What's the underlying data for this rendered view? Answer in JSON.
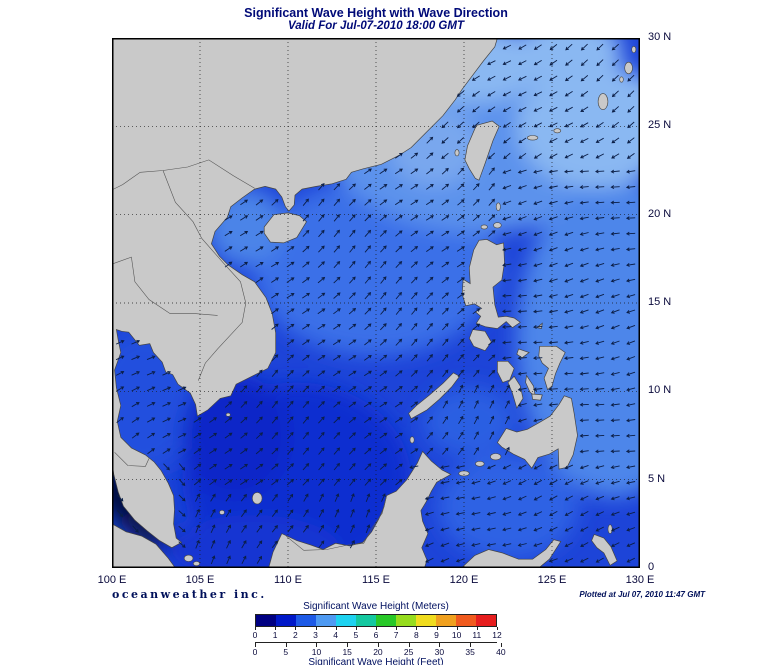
{
  "header": {
    "title": "Significant Wave Height with Wave Direction",
    "subtitle": "Valid For Jul-07-2010 18:00 GMT"
  },
  "map": {
    "lon_ticks": [
      "100 E",
      "105 E",
      "110 E",
      "115 E",
      "120 E",
      "125 E",
      "130 E"
    ],
    "lat_ticks": [
      "30 N",
      "25 N",
      "20 N",
      "15 N",
      "10 N",
      "5 N",
      "0"
    ],
    "grid_interval_deg": 5,
    "palette": {
      "sea_base": "#1d44d8",
      "deep": "#0d2fd0",
      "deeper": "#0a28c8",
      "mid": "#3a6fe8",
      "light": "#5c92ec",
      "pacific": "#4e86ea",
      "palest": "#8ab8f2",
      "strait_light": "#79a7ee",
      "tonkin": "#4c84e8",
      "gulf": "#2050de",
      "java": "#1236d2",
      "celebes": "#2e62e4",
      "sulu": "#2c5ee2",
      "malacca_dark": "#071450",
      "malacca_core": "#02093c",
      "land": "#c9c9c9",
      "coast": "#444444",
      "border": "#555555",
      "grid": "#1a1a1a",
      "arrow": "#0b1e46",
      "frame": "#000000"
    },
    "wave_direction_regions": [
      {
        "name": "south-china-sea",
        "toward_deg": 42
      },
      {
        "name": "gulf-of-thailand",
        "toward_deg": 32
      },
      {
        "name": "gulf-of-tonkin",
        "toward_deg": 40
      },
      {
        "name": "pacific",
        "toward_deg": 192
      },
      {
        "name": "east-china-sea",
        "toward_deg": 215
      },
      {
        "name": "sulu-sea",
        "toward_deg": 55
      },
      {
        "name": "celebes-sea",
        "toward_deg": 200
      },
      {
        "name": "java-sea",
        "toward_deg": 60
      },
      {
        "name": "malacca-strait",
        "toward_deg": 310
      }
    ]
  },
  "footer": {
    "brand": "oceanweather inc.",
    "plotted": "Plotted at Jul 07, 2010 11:47 GMT"
  },
  "legend": {
    "meters_label": "Significant Wave Height (Meters)",
    "feet_label": "Significant Wave Height (Feet)",
    "meters_ticks": [
      0,
      1,
      2,
      3,
      4,
      5,
      6,
      7,
      8,
      9,
      10,
      11,
      12
    ],
    "feet_ticks": [
      0,
      5,
      10,
      15,
      20,
      25,
      30,
      35,
      40
    ],
    "colors": [
      "#000082",
      "#0018c8",
      "#1e5ae6",
      "#4e9af2",
      "#1ed2f0",
      "#14c8a0",
      "#28c828",
      "#96dc1e",
      "#f0dc1e",
      "#f0a01e",
      "#f05a1e",
      "#e61e1e"
    ]
  }
}
